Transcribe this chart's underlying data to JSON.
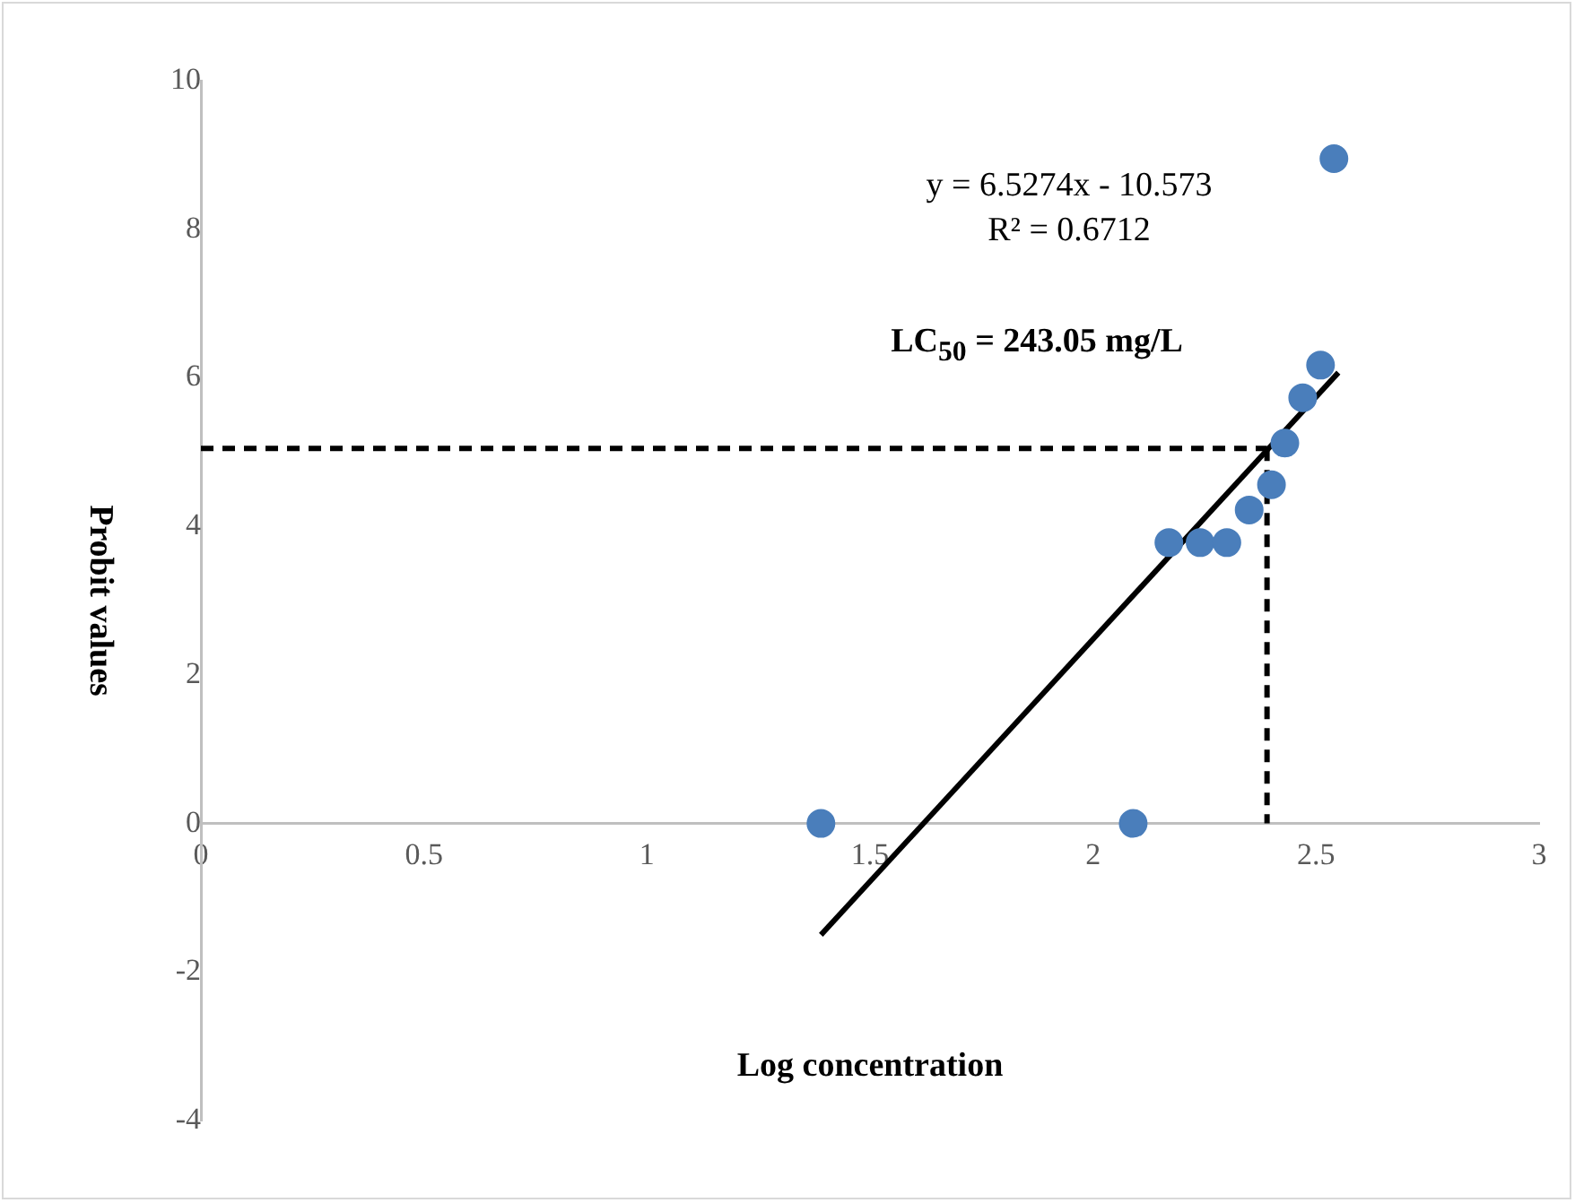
{
  "chart_data": {
    "type": "scatter",
    "xlabel": "Log concentration",
    "ylabel": "Probit values",
    "xlim": [
      0,
      3
    ],
    "xticks": [
      0,
      0.5,
      1,
      1.5,
      2,
      2.5,
      3
    ],
    "ylim": [
      -4,
      10
    ],
    "yticks": [
      -4,
      -2,
      0,
      2,
      4,
      6,
      8,
      10
    ],
    "grid": false,
    "legend": false,
    "marker": "circle",
    "series": [
      {
        "color": "#4a7ebb",
        "x": [
          1.39,
          2.09,
          2.17,
          2.24,
          2.3,
          2.35,
          2.4,
          2.43,
          2.47,
          2.51,
          2.54
        ],
        "values": [
          0,
          0,
          3.78,
          3.78,
          3.78,
          4.22,
          4.56,
          5.12,
          5.73,
          6.17,
          8.95
        ]
      },
      {
        "type": "line",
        "color": "#000000",
        "x": [
          1.39,
          2.55
        ],
        "values": [
          -1.5,
          6.07
        ],
        "line_style": "solid",
        "marker": "none"
      },
      {
        "type": "line",
        "color": "#000000",
        "x": [
          0,
          2.39
        ],
        "values": [
          5.05,
          5.05
        ],
        "line_style": "dashed",
        "marker": "none"
      },
      {
        "type": "line",
        "color": "#000000",
        "x": [
          2.39,
          2.39
        ],
        "values": [
          5.05,
          0
        ],
        "line_style": "dashed",
        "marker": "none"
      }
    ],
    "annotations": [
      "y = 6.5274x - 10.573",
      "R² = 0.6712",
      "LC$_{50}$ = 243.05 mg/L"
    ]
  }
}
